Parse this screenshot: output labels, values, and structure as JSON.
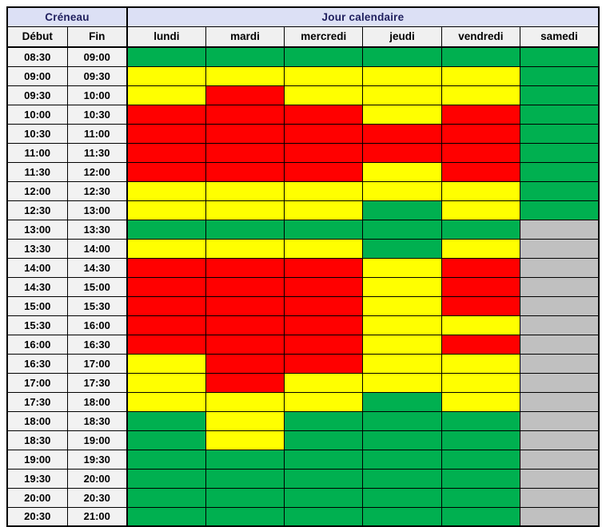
{
  "header": {
    "creneau_label": "Créneau",
    "jour_label": "Jour calendaire",
    "debut_label": "Début",
    "fin_label": "Fin"
  },
  "styles": {
    "header_top_bg": "#dce0f5",
    "header_top_text": "#1f1f5e",
    "header_sub_bg": "#f0f0f0",
    "time_cell_bg": "#f2f2f2",
    "border_color": "#000000"
  },
  "chart_data": {
    "type": "heatmap",
    "title": "Jour calendaire / Créneau availability grid",
    "xlabel": "Jour calendaire",
    "ylabel": "Créneau",
    "legend_position": "none",
    "grid": true,
    "columns": [
      "lundi",
      "mardi",
      "mercredi",
      "jeudi",
      "vendredi",
      "samedi"
    ],
    "color_map": {
      "green": "#00b050",
      "yellow": "#ffff00",
      "red": "#ff0000",
      "gray": "#c0c0c0"
    },
    "rows": [
      {
        "debut": "08:30",
        "fin": "09:00",
        "cells": [
          "green",
          "green",
          "green",
          "green",
          "green",
          "green"
        ]
      },
      {
        "debut": "09:00",
        "fin": "09:30",
        "cells": [
          "yellow",
          "yellow",
          "yellow",
          "yellow",
          "yellow",
          "green"
        ]
      },
      {
        "debut": "09:30",
        "fin": "10:00",
        "cells": [
          "yellow",
          "red",
          "yellow",
          "yellow",
          "yellow",
          "green"
        ]
      },
      {
        "debut": "10:00",
        "fin": "10:30",
        "cells": [
          "red",
          "red",
          "red",
          "yellow",
          "red",
          "green"
        ]
      },
      {
        "debut": "10:30",
        "fin": "11:00",
        "cells": [
          "red",
          "red",
          "red",
          "red",
          "red",
          "green"
        ]
      },
      {
        "debut": "11:00",
        "fin": "11:30",
        "cells": [
          "red",
          "red",
          "red",
          "red",
          "red",
          "green"
        ]
      },
      {
        "debut": "11:30",
        "fin": "12:00",
        "cells": [
          "red",
          "red",
          "red",
          "yellow",
          "red",
          "green"
        ]
      },
      {
        "debut": "12:00",
        "fin": "12:30",
        "cells": [
          "yellow",
          "yellow",
          "yellow",
          "yellow",
          "yellow",
          "green"
        ]
      },
      {
        "debut": "12:30",
        "fin": "13:00",
        "cells": [
          "yellow",
          "yellow",
          "yellow",
          "green",
          "yellow",
          "green"
        ]
      },
      {
        "debut": "13:00",
        "fin": "13:30",
        "cells": [
          "green",
          "green",
          "green",
          "green",
          "green",
          "gray"
        ]
      },
      {
        "debut": "13:30",
        "fin": "14:00",
        "cells": [
          "yellow",
          "yellow",
          "yellow",
          "green",
          "yellow",
          "gray"
        ]
      },
      {
        "debut": "14:00",
        "fin": "14:30",
        "cells": [
          "red",
          "red",
          "red",
          "yellow",
          "red",
          "gray"
        ]
      },
      {
        "debut": "14:30",
        "fin": "15:00",
        "cells": [
          "red",
          "red",
          "red",
          "yellow",
          "red",
          "gray"
        ]
      },
      {
        "debut": "15:00",
        "fin": "15:30",
        "cells": [
          "red",
          "red",
          "red",
          "yellow",
          "red",
          "gray"
        ]
      },
      {
        "debut": "15:30",
        "fin": "16:00",
        "cells": [
          "red",
          "red",
          "red",
          "yellow",
          "yellow",
          "gray"
        ]
      },
      {
        "debut": "16:00",
        "fin": "16:30",
        "cells": [
          "red",
          "red",
          "red",
          "yellow",
          "red",
          "gray"
        ]
      },
      {
        "debut": "16:30",
        "fin": "17:00",
        "cells": [
          "yellow",
          "red",
          "red",
          "yellow",
          "yellow",
          "gray"
        ]
      },
      {
        "debut": "17:00",
        "fin": "17:30",
        "cells": [
          "yellow",
          "red",
          "yellow",
          "yellow",
          "yellow",
          "gray"
        ]
      },
      {
        "debut": "17:30",
        "fin": "18:00",
        "cells": [
          "yellow",
          "yellow",
          "yellow",
          "green",
          "yellow",
          "gray"
        ]
      },
      {
        "debut": "18:00",
        "fin": "18:30",
        "cells": [
          "green",
          "yellow",
          "green",
          "green",
          "green",
          "gray"
        ]
      },
      {
        "debut": "18:30",
        "fin": "19:00",
        "cells": [
          "green",
          "yellow",
          "green",
          "green",
          "green",
          "gray"
        ]
      },
      {
        "debut": "19:00",
        "fin": "19:30",
        "cells": [
          "green",
          "green",
          "green",
          "green",
          "green",
          "gray"
        ]
      },
      {
        "debut": "19:30",
        "fin": "20:00",
        "cells": [
          "green",
          "green",
          "green",
          "green",
          "green",
          "gray"
        ]
      },
      {
        "debut": "20:00",
        "fin": "20:30",
        "cells": [
          "green",
          "green",
          "green",
          "green",
          "green",
          "gray"
        ]
      },
      {
        "debut": "20:30",
        "fin": "21:00",
        "cells": [
          "green",
          "green",
          "green",
          "green",
          "green",
          "gray"
        ]
      }
    ]
  }
}
